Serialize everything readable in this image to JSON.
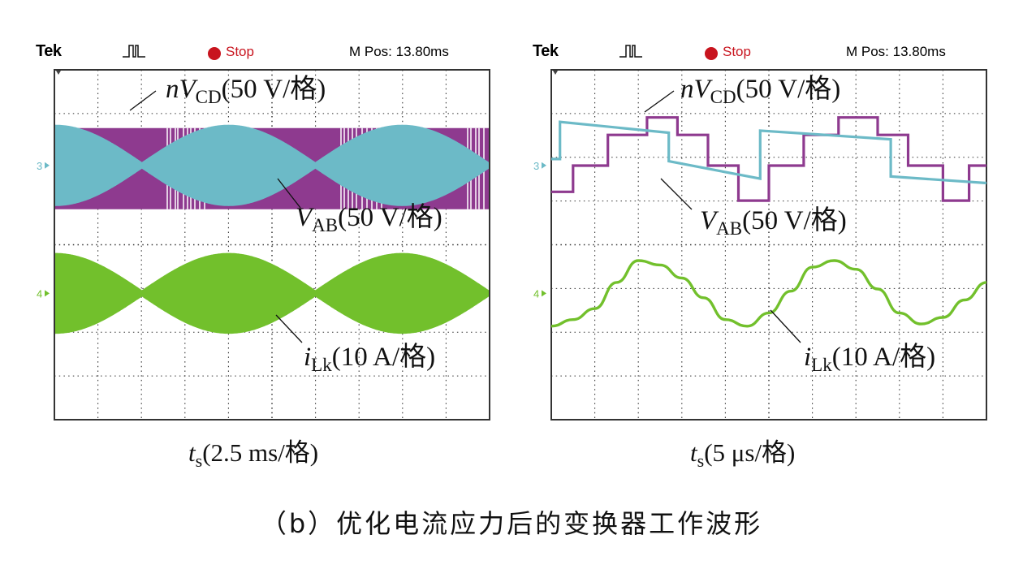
{
  "figure": {
    "caption": "（b）优化电流应力后的变换器工作波形"
  },
  "scope_header": {
    "brand": "Tek",
    "status": "Stop",
    "mpos": "M Pos: 13.80ms"
  },
  "colors": {
    "vcd": "#8e3a8f",
    "vab": "#6cbac7",
    "ilk": "#72c02c",
    "stop": "#c8141e",
    "grid": "#333333"
  },
  "chart_data": [
    {
      "type": "line",
      "panel": "left",
      "time_scale_label": "(2.5 ms/格)",
      "xlabel": "t_s(2.5 ms/格)",
      "series": [
        {
          "name": "nV_CD(50 V/格)",
          "var": "nV",
          "sub": "CD",
          "unit": "(50 V/格)",
          "channel": "",
          "description_values": {
            "amplitude_div": 1.7,
            "carrier": "high-frequency square wave"
          }
        },
        {
          "name": "V_AB(50 V/格)",
          "var": "V",
          "sub": "AB",
          "unit": "(50 V/格)",
          "channel": "3",
          "envelope_periods": 2.5,
          "amplitude_div": 1.5
        },
        {
          "name": "i_Lk(10 A/格)",
          "var": "i",
          "sub": "Lk",
          "unit": "(10 A/格)",
          "channel": "4",
          "envelope_periods": 2.5,
          "amplitude_div": 1.4
        }
      ]
    },
    {
      "type": "line",
      "panel": "right",
      "time_scale_label": "(5 μs/格)",
      "xlabel": "t_s(5 μs/格)",
      "series": [
        {
          "name": "nV_CD(50 V/格)",
          "var": "nV",
          "sub": "CD",
          "unit": "(50 V/格)",
          "channel": "",
          "x": [
            0,
            0.5,
            0.5,
            1.3,
            1.3,
            2.2,
            2.2,
            2.9,
            2.9,
            3.6,
            3.6,
            4.3,
            4.3,
            5.0,
            5.0,
            5.8,
            5.8,
            6.6,
            6.6,
            7.5,
            7.5,
            8.2,
            8.2,
            9.0,
            9.0,
            9.6,
            9.6,
            10
          ],
          "y": [
            0.25,
            0.25,
            0.85,
            0.85,
            1.55,
            1.55,
            1.95,
            1.95,
            1.55,
            1.55,
            0.85,
            0.85,
            0.05,
            0.05,
            0.85,
            0.85,
            1.55,
            1.55,
            1.95,
            1.95,
            1.55,
            1.55,
            0.85,
            0.85,
            0.05,
            0.05,
            0.85,
            0.85
          ]
        },
        {
          "name": "V_AB(50 V/格)",
          "var": "V",
          "sub": "AB",
          "unit": "(50 V/格)",
          "channel": "3",
          "x": [
            0,
            0.2,
            0.2,
            2.7,
            2.7,
            4.8,
            4.8,
            7.8,
            7.8,
            10
          ],
          "y": [
            1.0,
            1.0,
            1.85,
            1.6,
            0.95,
            0.55,
            1.65,
            1.45,
            0.6,
            0.45
          ]
        },
        {
          "name": "i_Lk(10 A/格)",
          "var": "i",
          "sub": "Lk",
          "unit": "(10 A/格)",
          "channel": "4",
          "x": [
            0,
            0.5,
            1.0,
            1.5,
            2.0,
            2.5,
            3.0,
            3.5,
            4.0,
            4.5,
            5.0,
            5.5,
            6.0,
            6.5,
            7.0,
            7.5,
            8.0,
            8.5,
            9.0,
            9.5,
            10
          ],
          "y": [
            -0.75,
            -0.6,
            -0.35,
            0.25,
            0.75,
            0.65,
            0.35,
            -0.1,
            -0.6,
            -0.75,
            -0.45,
            0.05,
            0.6,
            0.75,
            0.55,
            0.1,
            -0.45,
            -0.7,
            -0.55,
            -0.15,
            0.25
          ]
        }
      ]
    }
  ]
}
